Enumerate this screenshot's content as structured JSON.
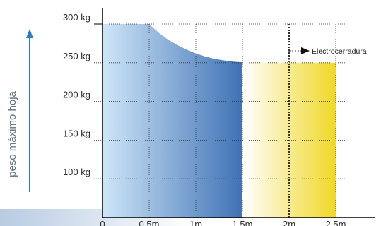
{
  "chart_data": {
    "type": "area",
    "xlabel": "",
    "ylabel": "peso máximo hoja",
    "x_ticks": [
      "0",
      "0.5m",
      "1m",
      "1.5m",
      "2m",
      "2.5m"
    ],
    "y_ticks": [
      "300 kg",
      "250 kg",
      "200 kg",
      "150 kg",
      "100 kg"
    ],
    "y_tick_values": [
      300,
      250,
      200,
      150,
      100
    ],
    "xlim": [
      0,
      2.5
    ],
    "ylim": [
      50,
      300
    ],
    "grid": true,
    "series": [
      {
        "x": [
          0,
          0.5,
          0.6,
          0.7,
          0.8,
          0.9,
          1.0,
          1.1,
          1.2,
          1.3,
          1.4,
          1.5
        ],
        "values": [
          300,
          300,
          289,
          280,
          273,
          267,
          262,
          258,
          255,
          253,
          251.5,
          250.5
        ],
        "color_start": "#cfe6f8",
        "color_end": "#3f72b5"
      },
      {
        "x": [
          1.5,
          1.7,
          1.9,
          2.0,
          2.5
        ],
        "values": [
          250.5,
          250,
          250,
          250,
          250
        ],
        "color_start": "#ffffff",
        "color_end": "#f0d826"
      }
    ],
    "annotations": [
      {
        "text": "Electrocerradura",
        "x": 2.0
      }
    ]
  },
  "colors": {
    "axis": "#000000",
    "grid": "#333333",
    "arrow": "#2e7bbf",
    "bottom_bar_start": "#b7cbe2",
    "bottom_bar_end": "#ffffff"
  }
}
